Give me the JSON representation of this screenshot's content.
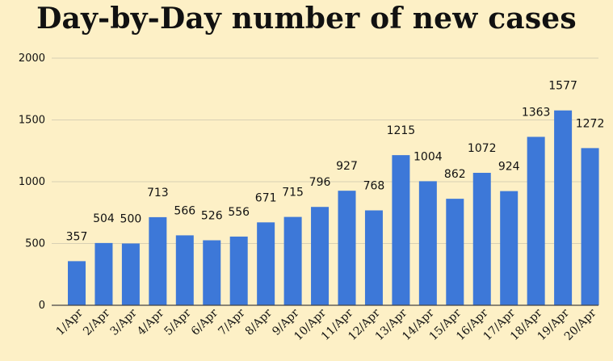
{
  "chart_data": {
    "type": "bar",
    "title": "Day-by-Day number of new cases",
    "xlabel": "",
    "ylabel": "",
    "ylim": [
      0,
      2000
    ],
    "yticks": [
      0,
      500,
      1000,
      1500,
      2000
    ],
    "grid": true,
    "legend": "none",
    "bar_color": "#3d78d8",
    "categories": [
      "1/Apr",
      "2/Apr",
      "3/Apr",
      "4/Apr",
      "5/Apr",
      "6/Apr",
      "7/Apr",
      "8/Apr",
      "9/Apr",
      "10/Apr",
      "11/Apr",
      "12/Apr",
      "13/Apr",
      "14/Apr",
      "15/Apr",
      "16/Apr",
      "17/Apr",
      "18/Apr",
      "19/Apr",
      "20/Apr"
    ],
    "values": [
      357,
      504,
      500,
      713,
      566,
      526,
      556,
      671,
      715,
      796,
      927,
      768,
      1215,
      1004,
      862,
      1072,
      924,
      1363,
      1577,
      1272
    ]
  }
}
